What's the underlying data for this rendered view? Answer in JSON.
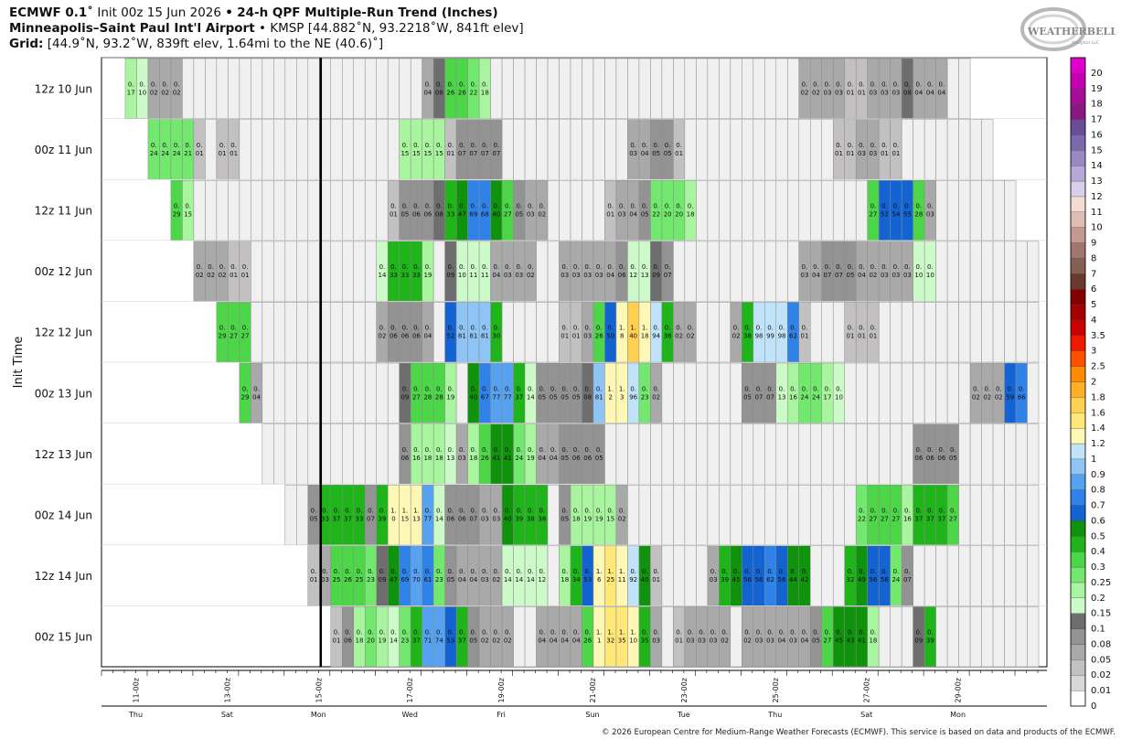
{
  "header": {
    "model": "ECMWF 0.1˚",
    "init": "Init 00z 15 Jun 2026",
    "bullet": "•",
    "product": "24-h QPF Multiple-Run Trend (Inches)",
    "station": "Minneapolis–Saint Paul Int'l Airport",
    "station_info": "KMSP [44.882˚N, 93.2218˚W, 841ft elev]",
    "grid_label": "Grid:",
    "grid_info": "[44.9˚N, 93.2˚W, 839ft elev, 1.64mi to the NE (40.6)˚]"
  },
  "logo": {
    "text": "WEATHERBELL",
    "subtext": "Analytics LLC"
  },
  "footer": "© 2026 European Centre for Medium-Range Weather Forecasts (ECMWF). This service is based on data and products of the ECMWF.",
  "chart_data": {
    "type": "heatmap",
    "ylabel": "Init Time",
    "units": "Inches",
    "x_ticks": [
      "11-00z",
      "13-00z",
      "15-00z",
      "17-00z",
      "19-00z",
      "21-00z",
      "23-00z",
      "25-00z",
      "27-00z",
      "29-00z"
    ],
    "day_labels": [
      "Thu",
      "Sat",
      "Mon",
      "Wed",
      "Fri",
      "Sun",
      "Tue",
      "Thu",
      "Sat",
      "Mon"
    ],
    "x_range": [
      "10 Jun 06z",
      "1 Jul 06z"
    ],
    "colorbar": {
      "labels": [
        "0",
        "0.01",
        "0.02",
        "0.05",
        "0.08",
        "0.1",
        "0.15",
        "0.2",
        "0.25",
        "0.3",
        "0.4",
        "0.5",
        "0.6",
        "0.7",
        "0.8",
        "0.9",
        "1",
        "1.2",
        "1.4",
        "1.6",
        "1.8",
        "2",
        "2.5",
        "3",
        "3.5",
        "4",
        "5",
        "6",
        "7",
        "8",
        "9",
        "10",
        "11",
        "12",
        "13",
        "14",
        "15",
        "16",
        "17",
        "18",
        "19",
        "20"
      ],
      "colors": [
        "#ffffff",
        "#d8d8d8",
        "#c2c0c0",
        "#aaa9a9",
        "#939393",
        "#6e6e6e",
        "#ccfac8",
        "#a9f59f",
        "#72e86e",
        "#4cd648",
        "#1eb41a",
        "#0f930c",
        "#1463d2",
        "#2e82e8",
        "#56a2f0",
        "#8fc5f6",
        "#c1e3fa",
        "#fff8b4",
        "#ffe878",
        "#ffd150",
        "#ffaf28",
        "#ff8c00",
        "#ff5000",
        "#f01a00",
        "#cc0000",
        "#a60000",
        "#820000",
        "#6a3a2e",
        "#856054",
        "#a0766e",
        "#c49a90",
        "#dfbcb4",
        "#f3dcd4",
        "#d8d0ea",
        "#b8a8d8",
        "#9a88c4",
        "#7c68ae",
        "#6a4c98",
        "#8a1880",
        "#a80d9a",
        "#c800b4",
        "#e000cc",
        "#ff33e6"
      ]
    },
    "cells_note": "Each row is one model run; each column is a 6-hourly 24h-QPF window labeled with the value's hundredths of an inch (inches shown as 0.xx).",
    "rows": [
      {
        "label": "12z 10 Jun",
        "start": "10 Jun 18z",
        "values": [
          0.17,
          0.1,
          0.02,
          0.02,
          0.02,
          0,
          0,
          0,
          0,
          0,
          0,
          0,
          0,
          0,
          0,
          0,
          0,
          0,
          0,
          0,
          0,
          0,
          0,
          0,
          0,
          0,
          0.04,
          0.08,
          0.26,
          0.26,
          0.22,
          0.18,
          0,
          0,
          0,
          0,
          0,
          0,
          0,
          0,
          0,
          0,
          0,
          0,
          0,
          0,
          0,
          0,
          0,
          0,
          0,
          0,
          0,
          0,
          0,
          0,
          0,
          0,
          0,
          0.02,
          0.02,
          0.03,
          0.03,
          0.01,
          0.01,
          0.03,
          0.03,
          0.03,
          0.08,
          0.04,
          0.04,
          0.04,
          0,
          0
        ]
      },
      {
        "label": "00z 11 Jun",
        "start": "11 Jun 06z",
        "values": [
          0.24,
          0.24,
          0.24,
          0.21,
          0.01,
          0,
          0.01,
          0.01,
          0,
          0,
          0,
          0,
          0,
          0,
          0,
          0,
          0,
          0,
          0,
          0,
          0,
          0,
          0.15,
          0.15,
          0.15,
          0.15,
          0.01,
          0.07,
          0.07,
          0.07,
          0.07,
          0,
          0,
          0,
          0,
          0,
          0,
          0,
          0,
          0,
          0,
          0,
          0.03,
          0.04,
          0.05,
          0.05,
          0.01,
          0,
          0,
          0,
          0,
          0,
          0,
          0,
          0,
          0,
          0,
          0,
          0,
          0,
          0.01,
          0.01,
          0.03,
          0.03,
          0.01,
          0.01,
          0,
          0,
          0,
          0,
          0,
          0,
          0,
          0
        ]
      },
      {
        "label": "12z 11 Jun",
        "start": "11 Jun 18z",
        "values": [
          0.29,
          0.15,
          0,
          0,
          0,
          0,
          0,
          0,
          0,
          0,
          0,
          0,
          0,
          0,
          0,
          0,
          0,
          0,
          0,
          0.01,
          0.05,
          0.06,
          0.06,
          0.08,
          0.33,
          0.47,
          0.69,
          0.68,
          0.4,
          0.27,
          0.05,
          0.03,
          0.02,
          0,
          0,
          0,
          0,
          0,
          0.01,
          0.03,
          0.04,
          0.05,
          0.22,
          0.2,
          0.2,
          0.18,
          0,
          0,
          0,
          0,
          0,
          0,
          0,
          0,
          0,
          0,
          0,
          0,
          0,
          0,
          0,
          0.27,
          0.52,
          0.54,
          0.55,
          0.28,
          0.03,
          0,
          0,
          0,
          0,
          0,
          0,
          0
        ]
      },
      {
        "label": "00z 12 Jun",
        "start": "12 Jun 06z",
        "values": [
          0.02,
          0.02,
          0.02,
          0.01,
          0.01,
          0,
          0,
          0,
          0,
          0,
          0,
          0,
          0,
          0,
          0,
          0,
          0.14,
          0.33,
          0.33,
          0.33,
          0.19,
          0,
          0.09,
          0.1,
          0.11,
          0.11,
          0.04,
          0.03,
          0.03,
          0.02,
          0,
          0,
          0.03,
          0.03,
          0.03,
          0.03,
          0.04,
          0.06,
          0.12,
          0.13,
          0.09,
          0.07,
          0,
          0,
          0,
          0,
          0,
          0,
          0,
          0,
          0,
          0,
          0,
          0.03,
          0.04,
          0.07,
          0.07,
          0.05,
          0.04,
          0.02,
          0.03,
          0.03,
          0.03,
          0.1,
          0.1,
          0,
          0,
          0,
          0,
          0,
          0,
          0,
          0,
          0
        ]
      },
      {
        "label": "12z 12 Jun",
        "start": "12 Jun 18z",
        "values": [
          0.29,
          0.27,
          0.27,
          0,
          0,
          0,
          0,
          0,
          0,
          0,
          0,
          0,
          0,
          0,
          0.02,
          0.06,
          0.06,
          0.06,
          0.04,
          0,
          0.52,
          0.81,
          0.81,
          0.81,
          0.3,
          0,
          0,
          0,
          0,
          0,
          0.01,
          0.01,
          0.03,
          0.26,
          0.5,
          1.08,
          1.4,
          1.18,
          0.94,
          0.36,
          0.02,
          0.02,
          0,
          0,
          0,
          0.02,
          0.38,
          0.98,
          0.99,
          0.98,
          0.62,
          0.01,
          0,
          0,
          0,
          0.01,
          0.01,
          0.01,
          0,
          0,
          0,
          0,
          0,
          0,
          0,
          0,
          0,
          0,
          0,
          0,
          0,
          0,
          0,
          0
        ]
      },
      {
        "label": "00z 13 Jun",
        "start": "13 Jun 06z",
        "values": [
          0.29,
          0.04,
          0,
          0,
          0,
          0,
          0,
          0,
          0,
          0,
          0,
          0,
          0,
          0,
          0.09,
          0.27,
          0.28,
          0.28,
          0.19,
          0,
          0.4,
          0.67,
          0.77,
          0.77,
          0.37,
          0.14,
          0.05,
          0.05,
          0.05,
          0.05,
          0.08,
          0.81,
          1.02,
          1.03,
          0.96,
          0.23,
          0.02,
          0,
          0,
          0,
          0,
          0,
          0,
          0,
          0.05,
          0.07,
          0.07,
          0.13,
          0.16,
          0.24,
          0.24,
          0.17,
          0.1,
          0,
          0,
          0,
          0,
          0,
          0,
          0,
          0,
          0,
          0,
          0,
          0.02,
          0.02,
          0.02,
          0.59,
          0.66,
          0,
          0,
          0,
          0,
          0
        ]
      },
      {
        "label": "12z 13 Jun",
        "start": "13 Jun 18z",
        "values": [
          0,
          0,
          0,
          0,
          0,
          0,
          0,
          0,
          0,
          0,
          0,
          0,
          0.06,
          0.16,
          0.18,
          0.18,
          0.13,
          0.03,
          0.18,
          0.26,
          0.41,
          0.41,
          0.24,
          0.19,
          0.04,
          0.04,
          0.05,
          0.06,
          0.06,
          0.05,
          0,
          0,
          0,
          0,
          0,
          0,
          0,
          0,
          0,
          0,
          0,
          0,
          0,
          0,
          0,
          0,
          0,
          0,
          0,
          0,
          0,
          0,
          0,
          0,
          0,
          0,
          0,
          0.06,
          0.06,
          0.06,
          0.05,
          0,
          0,
          0,
          0,
          0,
          0,
          0,
          0,
          0,
          0,
          0,
          0,
          0
        ]
      },
      {
        "label": "00z 14 Jun",
        "start": "14 Jun 06z",
        "values": [
          0,
          0,
          0.05,
          0.33,
          0.37,
          0.37,
          0.33,
          0.07,
          0.39,
          1.0,
          1.15,
          1.13,
          0.77,
          0.14,
          0.06,
          0.06,
          0.07,
          0.03,
          0.03,
          0.4,
          0.39,
          0.38,
          0.38,
          0,
          0.05,
          0.18,
          0.19,
          0.19,
          0.15,
          0.02,
          0,
          0,
          0,
          0,
          0,
          0,
          0,
          0,
          0,
          0,
          0,
          0,
          0,
          0,
          0,
          0,
          0,
          0,
          0,
          0,
          0.22,
          0.27,
          0.27,
          0.27,
          0.16,
          0.37,
          0.37,
          0.37,
          0.27,
          0,
          0,
          0,
          0,
          0,
          0,
          0,
          0,
          0,
          0,
          0,
          0,
          0,
          0,
          0
        ]
      },
      {
        "label": "12z 14 Jun",
        "start": "14 Jun 18z",
        "values": [
          0.01,
          0.03,
          0.25,
          0.26,
          0.25,
          0.23,
          0.09,
          0.47,
          0.69,
          0.7,
          0.61,
          0.23,
          0.05,
          0.04,
          0.04,
          0.03,
          0.02,
          0.14,
          0.14,
          0.14,
          0.12,
          0,
          0.18,
          0.34,
          0.53,
          1.06,
          1.25,
          1.11,
          0.92,
          0.4,
          0.01,
          0,
          0,
          0,
          0,
          0.03,
          0.39,
          0.45,
          0.56,
          0.56,
          0.62,
          0.56,
          0.44,
          0.42,
          0,
          0,
          0,
          0.32,
          0.49,
          0.56,
          0.56,
          0.24,
          0.07,
          0,
          0,
          0,
          0,
          0,
          0,
          0,
          0,
          0,
          0,
          0,
          0,
          0,
          0,
          0,
          0,
          0,
          0,
          0,
          0,
          0
        ]
      },
      {
        "label": "00z 15 Jun",
        "start": "15 Jun 06z",
        "values": [
          0.01,
          0.06,
          0.18,
          0.2,
          0.19,
          0.14,
          0.23,
          0.37,
          0.71,
          0.74,
          0.53,
          0.37,
          0.05,
          0.02,
          0.02,
          0.02,
          0,
          0,
          0.04,
          0.04,
          0.04,
          0.04,
          0.26,
          1.01,
          1.32,
          1.35,
          1.1,
          0.35,
          0.03,
          0,
          0.01,
          0.03,
          0.03,
          0.03,
          0.02,
          0,
          0.02,
          0.03,
          0.03,
          0.04,
          0.03,
          0.04,
          0.05,
          0.27,
          0.45,
          0.43,
          0.41,
          0.18,
          0,
          0,
          0,
          0.09,
          0.39,
          0,
          0,
          0,
          0,
          0,
          0,
          0,
          0,
          0,
          0,
          0,
          0,
          0,
          0,
          0,
          0,
          0,
          0,
          0,
          0,
          0
        ]
      }
    ],
    "cell_text": [
      [
        "0.",
        "17",
        "0.",
        "1",
        "0.",
        "02",
        "0.",
        "02",
        "0.",
        "02"
      ]
    ]
  }
}
